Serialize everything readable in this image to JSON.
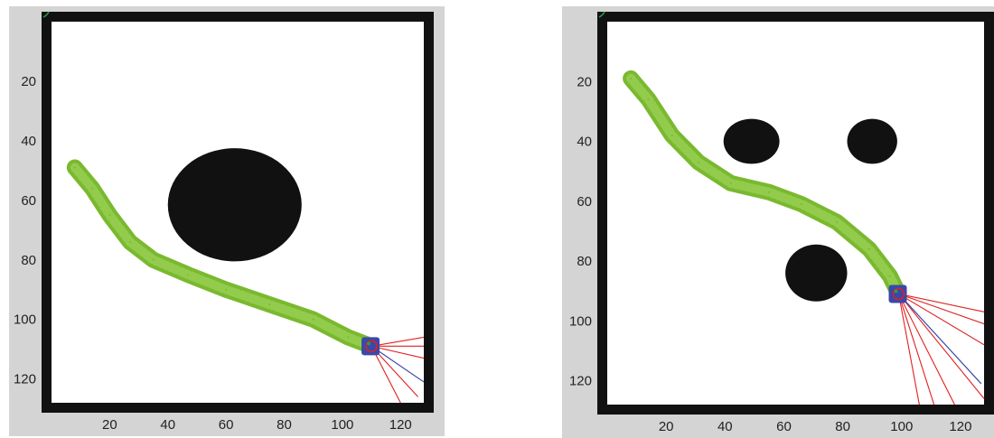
{
  "chart_data": [
    {
      "type": "scatter",
      "title": "",
      "xlabel": "",
      "ylabel": "",
      "xlim": [
        0,
        128
      ],
      "ylim": [
        128,
        0
      ],
      "x_ticks": [
        20,
        40,
        60,
        80,
        100,
        120
      ],
      "y_ticks": [
        20,
        40,
        60,
        80,
        100,
        120
      ],
      "grid": false,
      "obstacles": [
        {
          "shape": "ellipse",
          "cx": 63,
          "cy": 61.5,
          "rx": 23,
          "ry": 19
        }
      ],
      "series": [
        {
          "role": "trajectory",
          "color": "#7ab92f",
          "points": [
            [
              8,
              49
            ],
            [
              14,
              56
            ],
            [
              20,
              65
            ],
            [
              27,
              74
            ],
            [
              35,
              80
            ],
            [
              47,
              85
            ],
            [
              60,
              90
            ],
            [
              75,
              95
            ],
            [
              90,
              100
            ],
            [
              102,
              106
            ],
            [
              110,
              109
            ]
          ]
        }
      ],
      "robot": {
        "x": 110,
        "y": 109,
        "color": "#3a48a8"
      },
      "sensor_rays": {
        "red": [
          [
            128,
            106
          ],
          [
            128,
            109
          ],
          [
            128,
            113
          ],
          [
            126,
            126
          ],
          [
            120,
            128
          ]
        ],
        "blue": [
          [
            128,
            121
          ]
        ]
      }
    },
    {
      "type": "scatter",
      "title": "",
      "xlabel": "",
      "ylabel": "",
      "xlim": [
        0,
        128
      ],
      "ylim": [
        128,
        0
      ],
      "x_ticks": [
        20,
        40,
        60,
        80,
        100,
        120
      ],
      "y_ticks": [
        20,
        40,
        60,
        80,
        100,
        120
      ],
      "grid": false,
      "obstacles": [
        {
          "shape": "ellipse",
          "cx": 49,
          "cy": 40,
          "rx": 9.5,
          "ry": 7.5
        },
        {
          "shape": "ellipse",
          "cx": 90,
          "cy": 40,
          "rx": 8.5,
          "ry": 7.5
        },
        {
          "shape": "ellipse",
          "cx": 71,
          "cy": 84,
          "rx": 10.5,
          "ry": 9.5
        }
      ],
      "series": [
        {
          "role": "trajectory",
          "color": "#7ab92f",
          "points": [
            [
              8,
              19
            ],
            [
              14,
              26
            ],
            [
              22,
              38
            ],
            [
              31,
              47
            ],
            [
              42,
              54
            ],
            [
              55,
              57
            ],
            [
              66,
              61
            ],
            [
              78,
              67
            ],
            [
              89,
              76
            ],
            [
              96,
              85
            ],
            [
              99,
              91
            ]
          ]
        }
      ],
      "robot": {
        "x": 99,
        "y": 91,
        "color": "#3a48a8"
      },
      "sensor_rays": {
        "red": [
          [
            128,
            97
          ],
          [
            128,
            101
          ],
          [
            128,
            108
          ],
          [
            128,
            126
          ],
          [
            118,
            128
          ],
          [
            111,
            128
          ],
          [
            106,
            128
          ]
        ],
        "blue": [
          [
            127,
            121
          ]
        ]
      }
    }
  ]
}
